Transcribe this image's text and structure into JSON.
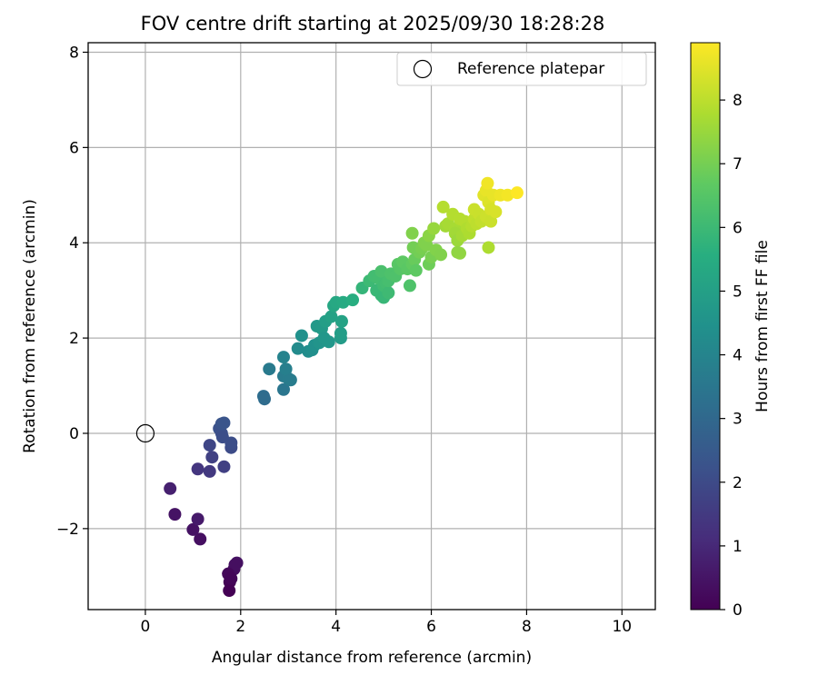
{
  "chart_data": {
    "type": "scatter",
    "title": "FOV centre drift starting at 2025/09/30 18:28:28",
    "xlabel": "Angular distance from reference (arcmin)",
    "ylabel": "Rotation from reference (arcmin)",
    "xlim": [
      -1.2,
      10.7
    ],
    "ylim": [
      -3.7,
      8.2
    ],
    "xticks": [
      0,
      2,
      4,
      6,
      8,
      10
    ],
    "yticks": [
      -2,
      0,
      2,
      4,
      6,
      8
    ],
    "grid": true,
    "legend": {
      "position": "top-right",
      "label": "Reference platepar"
    },
    "reference_point": {
      "x": 0,
      "y": 0
    },
    "colorbar": {
      "label": "Hours from first FF file",
      "colormap": "viridis",
      "vmin": 0,
      "vmax": 8.9,
      "ticks": [
        0,
        1,
        2,
        3,
        4,
        5,
        6,
        7,
        8
      ]
    },
    "series": [
      {
        "name": "FOV centre",
        "points": [
          [
            1.92,
            -2.72
          ],
          [
            1.86,
            -2.85
          ],
          [
            1.88,
            -2.76
          ],
          [
            1.74,
            -2.95
          ],
          [
            1.77,
            -3.12
          ],
          [
            1.76,
            -3.3
          ],
          [
            1.8,
            -3.05
          ],
          [
            1.15,
            -2.22
          ],
          [
            1.0,
            -2.02
          ],
          [
            1.1,
            -1.8
          ],
          [
            0.62,
            -1.7
          ],
          [
            0.52,
            -1.16
          ],
          [
            1.1,
            -0.75
          ],
          [
            1.35,
            -0.8
          ],
          [
            1.65,
            -0.7
          ],
          [
            1.4,
            -0.5
          ],
          [
            1.35,
            -0.25
          ],
          [
            1.8,
            -0.3
          ],
          [
            1.8,
            -0.2
          ],
          [
            1.55,
            0.1
          ],
          [
            1.6,
            0.0
          ],
          [
            1.62,
            -0.08
          ],
          [
            1.6,
            0.2
          ],
          [
            1.65,
            0.22
          ],
          [
            2.48,
            0.78
          ],
          [
            2.5,
            0.72
          ],
          [
            2.6,
            1.35
          ],
          [
            2.9,
            0.92
          ],
          [
            2.9,
            1.2
          ],
          [
            3.0,
            1.15
          ],
          [
            2.95,
            1.35
          ],
          [
            2.9,
            1.6
          ],
          [
            3.05,
            1.12
          ],
          [
            3.2,
            1.78
          ],
          [
            3.28,
            2.05
          ],
          [
            3.42,
            1.72
          ],
          [
            3.5,
            1.75
          ],
          [
            3.55,
            1.85
          ],
          [
            3.65,
            1.9
          ],
          [
            3.6,
            2.25
          ],
          [
            3.7,
            2.2
          ],
          [
            3.75,
            2.0
          ],
          [
            3.78,
            2.35
          ],
          [
            3.85,
            1.92
          ],
          [
            3.9,
            2.45
          ],
          [
            3.95,
            2.68
          ],
          [
            4.0,
            2.75
          ],
          [
            4.1,
            2.0
          ],
          [
            4.1,
            2.1
          ],
          [
            4.12,
            2.35
          ],
          [
            4.15,
            2.75
          ],
          [
            4.35,
            2.8
          ],
          [
            4.55,
            3.05
          ],
          [
            4.7,
            3.2
          ],
          [
            4.8,
            3.3
          ],
          [
            4.85,
            3.0
          ],
          [
            4.9,
            3.25
          ],
          [
            4.95,
            3.4
          ],
          [
            4.95,
            2.9
          ],
          [
            5.0,
            2.85
          ],
          [
            5.0,
            3.1
          ],
          [
            5.05,
            3.15
          ],
          [
            5.1,
            2.95
          ],
          [
            5.1,
            3.2
          ],
          [
            5.15,
            3.35
          ],
          [
            5.25,
            3.3
          ],
          [
            5.3,
            3.55
          ],
          [
            5.35,
            3.45
          ],
          [
            5.4,
            3.6
          ],
          [
            5.5,
            3.45
          ],
          [
            5.55,
            3.1
          ],
          [
            5.6,
            3.55
          ],
          [
            5.6,
            4.2
          ],
          [
            5.62,
            3.9
          ],
          [
            5.65,
            3.65
          ],
          [
            5.68,
            3.42
          ],
          [
            5.75,
            3.8
          ],
          [
            5.8,
            3.88
          ],
          [
            5.85,
            4.0
          ],
          [
            5.9,
            3.95
          ],
          [
            5.95,
            4.15
          ],
          [
            5.95,
            3.55
          ],
          [
            6.0,
            3.7
          ],
          [
            6.05,
            4.3
          ],
          [
            6.1,
            3.85
          ],
          [
            6.2,
            3.75
          ],
          [
            6.25,
            4.75
          ],
          [
            6.3,
            4.35
          ],
          [
            6.35,
            4.4
          ],
          [
            6.45,
            4.6
          ],
          [
            6.5,
            4.3
          ],
          [
            6.5,
            4.2
          ],
          [
            6.55,
            4.05
          ],
          [
            6.55,
            3.8
          ],
          [
            6.6,
            4.5
          ],
          [
            6.6,
            3.78
          ],
          [
            6.65,
            4.15
          ],
          [
            6.7,
            4.45
          ],
          [
            6.75,
            4.3
          ],
          [
            6.8,
            4.2
          ],
          [
            6.85,
            4.35
          ],
          [
            6.9,
            4.5
          ],
          [
            6.9,
            4.7
          ],
          [
            6.95,
            4.4
          ],
          [
            7.0,
            4.6
          ],
          [
            7.05,
            4.45
          ],
          [
            7.1,
            5.0
          ],
          [
            7.15,
            4.55
          ],
          [
            7.15,
            5.1
          ],
          [
            7.18,
            5.25
          ],
          [
            7.2,
            4.85
          ],
          [
            7.2,
            3.9
          ],
          [
            7.25,
            4.7
          ],
          [
            7.25,
            4.45
          ],
          [
            7.3,
            5.0
          ],
          [
            7.35,
            4.65
          ],
          [
            7.45,
            5.0
          ],
          [
            7.6,
            5.0
          ],
          [
            7.8,
            5.05
          ]
        ]
      }
    ]
  }
}
